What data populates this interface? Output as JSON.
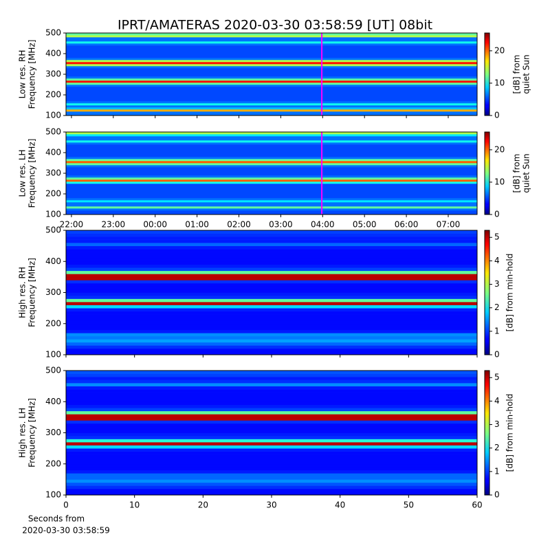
{
  "chart_data": [
    {
      "type": "heatmap",
      "title": "IPRT/AMATERAS 2020-03-30 03:58:59 [UT]   08bit",
      "ylabel": [
        "Low res. RH",
        "Frequency [MHz]"
      ],
      "xlim": [
        21.87,
        31.69
      ],
      "xticks": [
        22,
        23,
        24,
        25,
        26,
        27,
        28,
        29,
        30,
        31
      ],
      "show_xtick_labels": false,
      "ylim": [
        100,
        500
      ],
      "yticks": [
        100,
        200,
        300,
        400,
        500
      ],
      "ybins": [
        100,
        110,
        120,
        130,
        140,
        150,
        160,
        170,
        180,
        190,
        200,
        210,
        220,
        230,
        240,
        250,
        260,
        270,
        280,
        290,
        300,
        310,
        320,
        330,
        340,
        350,
        360,
        370,
        380,
        390,
        400,
        410,
        420,
        430,
        440,
        450,
        460,
        470,
        480,
        490,
        500
      ],
      "values": [
        6,
        6,
        18,
        8,
        6,
        10,
        6,
        5,
        5,
        5,
        5,
        5,
        5,
        5,
        6,
        12,
        22,
        12,
        6,
        5,
        5,
        5,
        5,
        6,
        14,
        22,
        14,
        6,
        5,
        5,
        5,
        5,
        5,
        5,
        6,
        10,
        6,
        6,
        14,
        12
      ],
      "clim": [
        0,
        25.5
      ],
      "cticks": [
        0,
        10,
        20
      ],
      "clabel": [
        "[dB] from",
        "quiet Sun"
      ],
      "marker_x": 27.98,
      "marker_color": "#ff00ff"
    },
    {
      "type": "heatmap",
      "ylabel": [
        "Low res. LH",
        "Frequency [MHz]"
      ],
      "xlim": [
        21.87,
        31.69
      ],
      "xticks": [
        {
          "value": 22,
          "label": "22:00"
        },
        {
          "value": 23,
          "label": "23:00"
        },
        {
          "value": 24,
          "label": "00:00"
        },
        {
          "value": 25,
          "label": "01:00"
        },
        {
          "value": 26,
          "label": "02:00"
        },
        {
          "value": 27,
          "label": "03:00"
        },
        {
          "value": 28,
          "label": "04:00"
        },
        {
          "value": 29,
          "label": "05:00"
        },
        {
          "value": 30,
          "label": "06:00"
        },
        {
          "value": 31,
          "label": "07:00"
        }
      ],
      "show_xtick_labels": true,
      "ylim": [
        100,
        500
      ],
      "yticks": [
        100,
        200,
        300,
        400,
        500
      ],
      "ybins": [
        100,
        110,
        120,
        130,
        140,
        150,
        160,
        170,
        180,
        190,
        200,
        210,
        220,
        230,
        240,
        250,
        260,
        270,
        280,
        290,
        300,
        310,
        320,
        330,
        340,
        350,
        360,
        370,
        380,
        390,
        400,
        410,
        420,
        430,
        440,
        450,
        460,
        470,
        480,
        490,
        500
      ],
      "values": [
        5,
        5,
        6,
        12,
        6,
        6,
        9,
        6,
        5,
        5,
        5,
        5,
        5,
        5,
        5,
        10,
        20,
        12,
        6,
        5,
        5,
        5,
        5,
        6,
        12,
        20,
        12,
        6,
        5,
        5,
        5,
        5,
        5,
        5,
        6,
        10,
        6,
        6,
        9,
        14
      ],
      "clim": [
        0,
        25.5
      ],
      "cticks": [
        0,
        10,
        20
      ],
      "clabel": [
        "[dB] from",
        "quiet Sun"
      ],
      "marker_x": 27.98,
      "marker_color": "#ff00ff"
    },
    {
      "type": "heatmap",
      "ylabel": [
        "High res. RH",
        "Frequency [MHz]"
      ],
      "xlim": [
        0,
        60
      ],
      "xticks": [
        0,
        10,
        20,
        30,
        40,
        50,
        60
      ],
      "show_xtick_labels": false,
      "ylim": [
        100,
        500
      ],
      "yticks": [
        100,
        200,
        300,
        400,
        500
      ],
      "ybins": [
        100,
        110,
        120,
        130,
        140,
        150,
        160,
        170,
        180,
        190,
        200,
        210,
        220,
        230,
        240,
        250,
        260,
        270,
        280,
        290,
        300,
        310,
        320,
        330,
        340,
        350,
        360,
        370,
        380,
        390,
        400,
        410,
        420,
        430,
        440,
        450,
        460,
        470,
        480,
        490,
        500
      ],
      "values": [
        0.7,
        0.7,
        0.9,
        1.2,
        1.5,
        1.3,
        1.4,
        0.8,
        0.7,
        0.7,
        0.7,
        0.7,
        0.7,
        0.7,
        0.8,
        1.8,
        5,
        2.5,
        0.9,
        0.8,
        0.7,
        0.7,
        0.7,
        0.9,
        5,
        5,
        2.5,
        1,
        0.8,
        0.7,
        0.7,
        0.7,
        0.7,
        0.7,
        0.8,
        1.2,
        0.8,
        0.8,
        0.9,
        1
      ],
      "clim": [
        0,
        5.3
      ],
      "cticks": [
        0,
        1,
        2,
        3,
        4,
        5
      ],
      "clabel": [
        "[dB] from min-hold"
      ]
    },
    {
      "type": "heatmap",
      "ylabel": [
        "High res. LH",
        "Frequency [MHz]"
      ],
      "xlim": [
        0,
        60
      ],
      "xticks": [
        0,
        10,
        20,
        30,
        40,
        50,
        60
      ],
      "show_xtick_labels": true,
      "xlabel": [
        "Seconds from",
        "2020-03-30 03:58:59"
      ],
      "ylim": [
        100,
        500
      ],
      "yticks": [
        100,
        200,
        300,
        400,
        500
      ],
      "ybins": [
        100,
        110,
        120,
        130,
        140,
        150,
        160,
        170,
        180,
        190,
        200,
        210,
        220,
        230,
        240,
        250,
        260,
        270,
        280,
        290,
        300,
        310,
        320,
        330,
        340,
        350,
        360,
        370,
        380,
        390,
        400,
        410,
        420,
        430,
        440,
        450,
        460,
        470,
        480,
        490,
        500
      ],
      "values": [
        0.7,
        0.7,
        0.9,
        1.1,
        1.4,
        1.2,
        1.2,
        0.8,
        0.7,
        0.7,
        0.7,
        0.7,
        0.7,
        0.7,
        0.8,
        1.8,
        5,
        2.2,
        0.9,
        0.8,
        0.7,
        0.7,
        0.7,
        0.9,
        5,
        5,
        2.5,
        1,
        0.8,
        0.7,
        0.7,
        0.7,
        0.7,
        0.7,
        0.8,
        1.4,
        0.9,
        0.8,
        1,
        1.1
      ],
      "clim": [
        0,
        5.3
      ],
      "cticks": [
        0,
        1,
        2,
        3,
        4,
        5
      ],
      "clabel": [
        "[dB] from min-hold"
      ]
    }
  ]
}
